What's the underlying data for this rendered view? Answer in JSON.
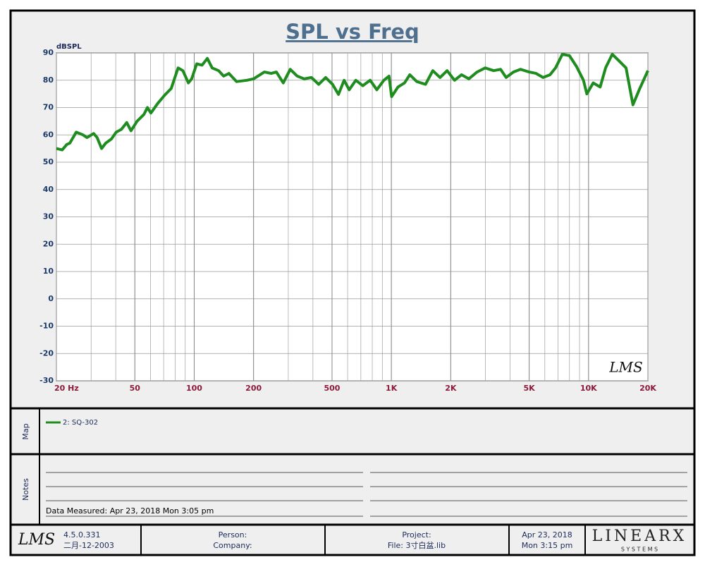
{
  "chart_data": {
    "type": "line",
    "title": "SPL vs Freq",
    "y_label": "dBSPL",
    "watermark": "LMS",
    "log_x": true,
    "grid": true,
    "minor_grid": true,
    "xlim": [
      20,
      20000
    ],
    "ylim": [
      -30,
      90
    ],
    "xticks": [
      {
        "value": 20,
        "label": "20 Hz"
      },
      50,
      100,
      200,
      500,
      {
        "value": 1000,
        "label": "1K"
      },
      {
        "value": 2000,
        "label": "2K"
      },
      {
        "value": 5000,
        "label": "5K"
      },
      {
        "value": 10000,
        "label": "10K"
      },
      {
        "value": 20000,
        "label": "20K"
      }
    ],
    "yticks": [
      90,
      80,
      70,
      60,
      50,
      40,
      30,
      20,
      10,
      0,
      -10,
      -20,
      -30
    ],
    "x": [
      20,
      21.4,
      22.6,
      23.4,
      25.2,
      27.3,
      28.6,
      30.9,
      32.2,
      33.9,
      35.6,
      38,
      40.2,
      42.7,
      45.5,
      47.8,
      51.3,
      55.6,
      57.9,
      60.3,
      65.3,
      70.7,
      76.5,
      82.8,
      87.6,
      93.4,
      97.1,
      102.9,
      109.6,
      116.6,
      123.3,
      133,
      141,
      150,
      164,
      185,
      200,
      227,
      246,
      261,
      283,
      307,
      333,
      361,
      393,
      428,
      464,
      503,
      539,
      576,
      611,
      660,
      716,
      781,
      844,
      916,
      973,
      1003,
      1080,
      1166,
      1240,
      1346,
      1490,
      1622,
      1766,
      1918,
      2090,
      2270,
      2470,
      2720,
      2990,
      3300,
      3580,
      3820,
      4160,
      4520,
      5000,
      5420,
      5880,
      6380,
      6800,
      7370,
      8000,
      8690,
      9420,
      9800,
      10560,
      11450,
      12200,
      13200,
      14300,
      15500,
      16800,
      18200,
      20000
    ],
    "series": [
      {
        "name": "2: SQ-302",
        "color": "#1e8c1e",
        "values": [
          55,
          54.5,
          56.5,
          57,
          61,
          60,
          59,
          60.5,
          59,
          55,
          57,
          58.5,
          61,
          62,
          64.5,
          61.5,
          65,
          67.5,
          70,
          68,
          71.5,
          74.5,
          77,
          84.5,
          83.5,
          79,
          80.5,
          86,
          85.5,
          88,
          84.5,
          83.5,
          81.5,
          82.5,
          79.5,
          80,
          80.5,
          83,
          82.5,
          83,
          79,
          84,
          81.5,
          80.5,
          81,
          78.5,
          81,
          78.5,
          74.8,
          80,
          76.5,
          80,
          78,
          80,
          76.5,
          80,
          81.5,
          74,
          77.5,
          79,
          82,
          79.5,
          78.5,
          83.5,
          81,
          83.5,
          80,
          82,
          80.5,
          83,
          84.5,
          83.5,
          84,
          81,
          83,
          84,
          83,
          82.5,
          81,
          82,
          84.5,
          89.5,
          89,
          85,
          80,
          75,
          79,
          77.5,
          84.5,
          89.5,
          87,
          84.5,
          71,
          77,
          83.5
        ]
      }
    ]
  },
  "panels": {
    "map_label": "Map",
    "notes_label": "Notes",
    "data_measured": "Data Measured: Apr 23, 2018  Mon  3:05 pm"
  },
  "footer": {
    "logo": "LMS",
    "version": "4.5.0.331",
    "version_date": "二月-12-2003",
    "person": "Person:",
    "company": "Company:",
    "project": "Project:",
    "file": "File: 3寸白盆.lib",
    "date": "Apr 23, 2018",
    "time": "Mon  3:15 pm",
    "brand": "LINEARX",
    "brand_sub": "S Y S T E M S"
  }
}
